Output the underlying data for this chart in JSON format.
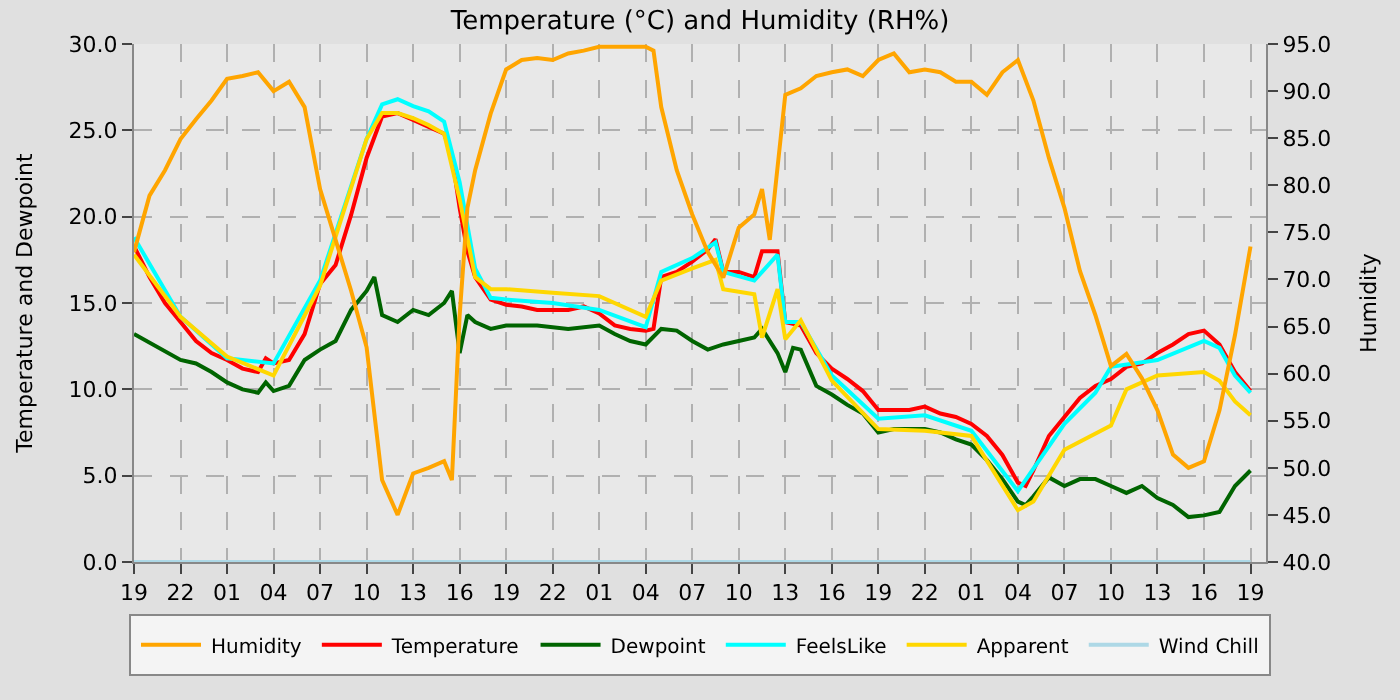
{
  "chart_data": {
    "type": "line",
    "title": "Temperature (°C) and Humidity (RH%)",
    "ylabel": "Temperature and Dewpoint",
    "y2label": "Humidity",
    "series": [
      {
        "name": "Humidity",
        "color": "#ffa500",
        "axis": "y2",
        "x": [
          "--01-01T19:00",
          "--01-01T20:00",
          "--01-01T21:00",
          "--01-01T22:00",
          "--01-01T23:00",
          "--01-02T00:00",
          "--01-02T01:00",
          "--01-02T02:00",
          "--01-02T03:00",
          "--01-02T04:00",
          "--01-02T05:00",
          "--01-02T06:00",
          "--01-02T07:00",
          "--01-02T08:00",
          "--01-02T09:00",
          "--01-02T10:00",
          "--01-02T11:00",
          "--01-02T12:00",
          "--01-02T13:00",
          "--01-02T14:00",
          "--01-02T15:00",
          "--01-02T15:30",
          "--01-02T16:00",
          "--01-02T16:30",
          "--01-02T17:00",
          "--01-02T18:00",
          "--01-02T19:00",
          "--01-02T20:00",
          "--01-02T21:00",
          "--01-02T22:00",
          "--01-02T23:00",
          "--01-03T00:00",
          "--01-03T01:00",
          "--01-03T02:00",
          "--01-03T03:00",
          "--01-03T04:00",
          "--01-03T04:30",
          "--01-03T05:00",
          "--01-03T06:00",
          "--01-03T07:00",
          "--01-03T08:00",
          "--01-03T09:00",
          "--01-03T10:00",
          "--01-03T11:00",
          "--01-03T11:30",
          "--01-03T12:00",
          "--01-03T13:00",
          "--01-03T14:00",
          "--01-03T15:00",
          "--01-03T16:00",
          "--01-03T17:00",
          "--01-03T18:00",
          "--01-03T19:00",
          "--01-03T20:00",
          "--01-03T21:00",
          "--01-03T22:00",
          "--01-03T23:00",
          "--01-04T00:00",
          "--01-04T01:00",
          "--01-04T02:00",
          "--01-04T03:00",
          "--01-04T04:00",
          "--01-04T05:00",
          "--01-04T06:00",
          "--01-04T07:00",
          "--01-04T08:00",
          "--01-04T09:00",
          "--01-04T10:00",
          "--01-04T11:00",
          "--01-04T12:00",
          "--01-04T13:00",
          "--01-04T14:00",
          "--01-04T15:00",
          "--01-04T16:00",
          "--01-04T17:00",
          "--01-04T18:00",
          "--01-04T19:00"
        ],
        "values": [
          72.9,
          78.9,
          81.6,
          84.9,
          87,
          89,
          91.3,
          91.6,
          92,
          90,
          91,
          88.3,
          79.6,
          74.2,
          68.8,
          62.8,
          48.7,
          45,
          49.4,
          50,
          50.7,
          48.7,
          66.2,
          77.6,
          81.6,
          87.6,
          92.3,
          93.3,
          93.5,
          93.3,
          94,
          94.3,
          94.7,
          94.7,
          94.7,
          94.7,
          94.3,
          88.3,
          81.6,
          76.9,
          72.9,
          70.2,
          75.5,
          76.9,
          79.6,
          74.2,
          89.6,
          90.3,
          91.6,
          92,
          92.3,
          91.6,
          93.3,
          94,
          92,
          92.3,
          92,
          91,
          91,
          89.6,
          92,
          93.3,
          89,
          82.9,
          77.6,
          70.9,
          66.2,
          60.8,
          62.1,
          59.5,
          56.1,
          51.4,
          50,
          50.7,
          56.1,
          64.1,
          73.5
        ]
      },
      {
        "name": "Temperature",
        "color": "#ff0000",
        "x": [
          "--01-01T19:00",
          "--01-01T20:00",
          "--01-01T21:00",
          "--01-01T22:00",
          "--01-01T23:00",
          "--01-02T00:00",
          "--01-02T01:00",
          "--01-02T02:00",
          "--01-02T03:00",
          "--01-02T03:30",
          "--01-02T04:00",
          "--01-02T05:00",
          "--01-02T06:00",
          "--01-02T07:00",
          "--01-02T08:00",
          "--01-02T09:00",
          "--01-02T10:00",
          "--01-02T11:00",
          "--01-02T12:00",
          "--01-02T13:00",
          "--01-02T14:00",
          "--01-02T15:00",
          "--01-02T15:30",
          "--01-02T16:00",
          "--01-02T16:30",
          "--01-02T17:00",
          "--01-02T18:00",
          "--01-02T19:00",
          "--01-02T20:00",
          "--01-02T21:00",
          "--01-02T22:00",
          "--01-02T23:00",
          "--01-03T00:00",
          "--01-03T01:00",
          "--01-03T02:00",
          "--01-03T03:00",
          "--01-03T04:00",
          "--01-03T04:30",
          "--01-03T05:00",
          "--01-03T06:00",
          "--01-03T07:00",
          "--01-03T08:00",
          "--01-03T08:30",
          "--01-03T09:00",
          "--01-03T10:00",
          "--01-03T11:00",
          "--01-03T11:30",
          "--01-03T12:30",
          "--01-03T13:00",
          "--01-03T14:00",
          "--01-03T15:00",
          "--01-03T16:00",
          "--01-03T17:00",
          "--01-03T18:00",
          "--01-03T19:00",
          "--01-03T20:00",
          "--01-03T21:00",
          "--01-03T22:00",
          "--01-03T23:00",
          "--01-04T00:00",
          "--01-04T01:00",
          "--01-04T02:00",
          "--01-04T03:00",
          "--01-04T04:00",
          "--01-04T04:30",
          "--01-04T05:00",
          "--01-04T06:00",
          "--01-04T07:00",
          "--01-04T08:00",
          "--01-04T09:00",
          "--01-04T10:00",
          "--01-04T11:00",
          "--01-04T12:00",
          "--01-04T13:00",
          "--01-04T14:00",
          "--01-04T15:00",
          "--01-04T16:00",
          "--01-04T17:00",
          "--01-04T18:00",
          "--01-04T19:00"
        ],
        "values": [
          18.3,
          16.5,
          15,
          13.9,
          12.8,
          12.1,
          11.7,
          11.2,
          11,
          11.8,
          11.5,
          11.7,
          13.2,
          16.1,
          17.2,
          20.1,
          23.4,
          25.8,
          26,
          25.6,
          25.2,
          24.8,
          23.5,
          20.5,
          18,
          16.5,
          15.2,
          14.9,
          14.8,
          14.6,
          14.6,
          14.6,
          14.8,
          14.4,
          13.7,
          13.5,
          13.4,
          13.5,
          16.5,
          16.8,
          17.4,
          18.1,
          18.7,
          16.8,
          16.8,
          16.5,
          18,
          18,
          13.9,
          13.7,
          12.1,
          11.2,
          10.6,
          9.9,
          8.8,
          8.8,
          8.8,
          9,
          8.6,
          8.4,
          8,
          7.3,
          6.2,
          4.6,
          4.4,
          5.3,
          7.3,
          8.4,
          9.5,
          10.2,
          10.6,
          11.3,
          11.5,
          12.1,
          12.6,
          13.2,
          13.4,
          12.6,
          11,
          9.9
        ]
      },
      {
        "name": "Dewpoint",
        "color": "#006400",
        "x": [
          "--01-01T19:00",
          "--01-01T22:00",
          "--01-01T23:00",
          "--01-02T00:00",
          "--01-02T01:00",
          "--01-02T02:00",
          "--01-02T03:00",
          "--01-02T03:30",
          "--01-02T04:00",
          "--01-02T05:00",
          "--01-02T06:00",
          "--01-02T07:00",
          "--01-02T08:00",
          "--01-02T09:00",
          "--01-02T10:00",
          "--01-02T10:30",
          "--01-02T11:00",
          "--01-02T12:00",
          "--01-02T13:00",
          "--01-02T14:00",
          "--01-02T15:00",
          "--01-02T15:30",
          "--01-02T16:00",
          "--01-02T16:30",
          "--01-02T17:00",
          "--01-02T18:00",
          "--01-02T19:00",
          "--01-02T21:00",
          "--01-02T23:00",
          "--01-03T01:00",
          "--01-03T02:00",
          "--01-03T03:00",
          "--01-03T04:00",
          "--01-03T05:00",
          "--01-03T06:00",
          "--01-03T07:00",
          "--01-03T08:00",
          "--01-03T09:00",
          "--01-03T10:00",
          "--01-03T11:00",
          "--01-03T11:30",
          "--01-03T12:30",
          "--01-03T13:00",
          "--01-03T13:30",
          "--01-03T14:00",
          "--01-03T15:00",
          "--01-03T16:00",
          "--01-03T17:00",
          "--01-03T18:00",
          "--01-03T19:00",
          "--01-03T20:00",
          "--01-03T21:00",
          "--01-03T22:00",
          "--01-03T23:00",
          "--01-04T00:00",
          "--01-04T01:00",
          "--01-04T02:00",
          "--01-04T03:00",
          "--01-04T04:00",
          "--01-04T04:30",
          "--01-04T05:00",
          "--01-04T06:00",
          "--01-04T07:00",
          "--01-04T08:00",
          "--01-04T09:00",
          "--01-04T10:00",
          "--01-04T11:00",
          "--01-04T12:00",
          "--01-04T13:00",
          "--01-04T14:00",
          "--01-04T15:00",
          "--01-04T16:00",
          "--01-04T17:00",
          "--01-04T18:00",
          "--01-04T19:00"
        ],
        "values": [
          13.2,
          11.7,
          11.5,
          11,
          10.4,
          10,
          9.8,
          10.4,
          9.9,
          10.2,
          11.7,
          12.3,
          12.8,
          14.6,
          15.7,
          16.5,
          14.3,
          13.9,
          14.6,
          14.3,
          15,
          15.7,
          12.1,
          14.3,
          13.9,
          13.5,
          13.7,
          13.7,
          13.5,
          13.7,
          13.2,
          12.8,
          12.6,
          13.5,
          13.4,
          12.8,
          12.3,
          12.6,
          12.8,
          13,
          13.5,
          12.1,
          11,
          12.4,
          12.3,
          10.2,
          9.7,
          9.1,
          8.6,
          7.5,
          7.7,
          7.7,
          7.7,
          7.5,
          7.1,
          6.8,
          5.9,
          4.8,
          3.5,
          3.3,
          3.8,
          4.9,
          4.4,
          4.8,
          4.8,
          4.4,
          4,
          4.4,
          3.7,
          3.3,
          2.6,
          2.7,
          2.9,
          4.4,
          5.3
        ]
      },
      {
        "name": "FeelsLike",
        "color": "#00ffff",
        "x": [
          "--01-01T19:00",
          "--01-01T22:00",
          "--01-02T01:00",
          "--01-02T04:00",
          "--01-02T07:00",
          "--01-02T10:00",
          "--01-02T11:00",
          "--01-02T12:00",
          "--01-02T13:00",
          "--01-02T14:00",
          "--01-02T15:00",
          "--01-02T16:00",
          "--01-02T17:00",
          "--01-02T18:00",
          "--01-02T19:00",
          "--01-02T22:00",
          "--01-03T01:00",
          "--01-03T04:00",
          "--01-03T05:00",
          "--01-03T07:00",
          "--01-03T08:30",
          "--01-03T09:00",
          "--01-03T11:00",
          "--01-03T12:30",
          "--01-03T13:00",
          "--01-03T14:00",
          "--01-03T16:00",
          "--01-03T19:00",
          "--01-03T22:00",
          "--01-04T01:00",
          "--01-04T04:00",
          "--01-04T07:00",
          "--01-04T09:00",
          "--01-04T10:00",
          "--01-04T13:00",
          "--01-04T16:00",
          "--01-04T17:00",
          "--01-04T18:00",
          "--01-04T19:00"
        ],
        "values": [
          18.8,
          14.2,
          11.8,
          11.5,
          16.3,
          24.5,
          26.5,
          26.8,
          26.4,
          26.1,
          25.5,
          22,
          17,
          15.3,
          15.2,
          15,
          14.6,
          13.6,
          16.8,
          17.6,
          18.5,
          16.8,
          16.3,
          17.8,
          13.9,
          13.9,
          10.8,
          8.3,
          8.5,
          7.6,
          4.1,
          8,
          9.8,
          11.3,
          11.7,
          12.8,
          12.4,
          10.8,
          9.8
        ]
      },
      {
        "name": "Apparent",
        "color": "#ffd700",
        "x": [
          "--01-01T19:00",
          "--01-01T22:00",
          "--01-02T01:00",
          "--01-02T04:00",
          "--01-02T07:00",
          "--01-02T10:00",
          "--01-02T11:00",
          "--01-02T12:00",
          "--01-02T13:00",
          "--01-02T14:00",
          "--01-02T15:00",
          "--01-02T16:00",
          "--01-02T17:00",
          "--01-02T18:00",
          "--01-02T19:00",
          "--01-02T22:00",
          "--01-03T01:00",
          "--01-03T04:00",
          "--01-03T05:00",
          "--01-03T07:00",
          "--01-03T08:30",
          "--01-03T09:00",
          "--01-03T11:00",
          "--01-03T11:30",
          "--01-03T12:30",
          "--01-03T13:00",
          "--01-03T14:00",
          "--01-03T16:00",
          "--01-03T19:00",
          "--01-03T22:00",
          "--01-04T01:00",
          "--01-04T04:00",
          "--01-04T05:00",
          "--01-04T07:00",
          "--01-04T10:00",
          "--01-04T11:00",
          "--01-04T13:00",
          "--01-04T16:00",
          "--01-04T17:00",
          "--01-04T18:00",
          "--01-04T19:00"
        ],
        "values": [
          17.8,
          14.2,
          11.9,
          10.8,
          16,
          24.5,
          26,
          26,
          25.7,
          25.3,
          24.8,
          21,
          16.5,
          15.8,
          15.8,
          15.6,
          15.4,
          14.2,
          16.3,
          17,
          17.5,
          15.8,
          15.5,
          13,
          15.8,
          12.9,
          14,
          10.5,
          7.7,
          7.6,
          7.3,
          3,
          3.5,
          6.5,
          7.9,
          10,
          10.8,
          11,
          10.5,
          9.3,
          8.5
        ]
      },
      {
        "name": "Wind Chill",
        "color": "#add8e6",
        "x": [
          "--01-01T19:00",
          "--01-04T19:00"
        ],
        "values": [
          0,
          0
        ]
      }
    ],
    "xlim": [
      "--01-01T19:00",
      "--01-04T20:00"
    ],
    "xticks": [
      {
        "value": "--01-01T19:00",
        "label": "19"
      },
      {
        "value": "--01-01T22:00",
        "label": "22"
      },
      {
        "value": "--01-02T01:00",
        "label": "01"
      },
      {
        "value": "--01-02T04:00",
        "label": "04"
      },
      {
        "value": "--01-02T07:00",
        "label": "07"
      },
      {
        "value": "--01-02T10:00",
        "label": "10"
      },
      {
        "value": "--01-02T13:00",
        "label": "13"
      },
      {
        "value": "--01-02T16:00",
        "label": "16"
      },
      {
        "value": "--01-02T19:00",
        "label": "19"
      },
      {
        "value": "--01-02T22:00",
        "label": "22"
      },
      {
        "value": "--01-03T01:00",
        "label": "01"
      },
      {
        "value": "--01-03T04:00",
        "label": "04"
      },
      {
        "value": "--01-03T07:00",
        "label": "07"
      },
      {
        "value": "--01-03T10:00",
        "label": "10"
      },
      {
        "value": "--01-03T13:00",
        "label": "13"
      },
      {
        "value": "--01-03T16:00",
        "label": "16"
      },
      {
        "value": "--01-03T19:00",
        "label": "19"
      },
      {
        "value": "--01-03T22:00",
        "label": "22"
      },
      {
        "value": "--01-04T01:00",
        "label": "01"
      },
      {
        "value": "--01-04T04:00",
        "label": "04"
      },
      {
        "value": "--01-04T07:00",
        "label": "07"
      },
      {
        "value": "--01-04T10:00",
        "label": "10"
      },
      {
        "value": "--01-04T13:00",
        "label": "13"
      },
      {
        "value": "--01-04T16:00",
        "label": "16"
      },
      {
        "value": "--01-04T19:00",
        "label": "19"
      }
    ],
    "ylim": [
      0,
      30
    ],
    "yticks": [
      {
        "value": 0,
        "label": "0.0"
      },
      {
        "value": 5,
        "label": "5.0"
      },
      {
        "value": 10,
        "label": "10.0"
      },
      {
        "value": 15,
        "label": "15.0"
      },
      {
        "value": 20,
        "label": "20.0"
      },
      {
        "value": 25,
        "label": "25.0"
      },
      {
        "value": 30,
        "label": "30.0"
      }
    ],
    "y2lim": [
      40,
      95
    ],
    "y2ticks": [
      {
        "value": 40,
        "label": "40.0"
      },
      {
        "value": 45,
        "label": "45.0"
      },
      {
        "value": 50,
        "label": "50.0"
      },
      {
        "value": 55,
        "label": "55.0"
      },
      {
        "value": 60,
        "label": "60.0"
      },
      {
        "value": 65,
        "label": "65.0"
      },
      {
        "value": 70,
        "label": "70.0"
      },
      {
        "value": 75,
        "label": "75.0"
      },
      {
        "value": 80,
        "label": "80.0"
      },
      {
        "value": 85,
        "label": "85.0"
      },
      {
        "value": 90,
        "label": "90.0"
      },
      {
        "value": 95,
        "label": "95.0"
      }
    ],
    "grid": true,
    "legend": "bottom",
    "line_style": "solid",
    "marker": "none"
  }
}
